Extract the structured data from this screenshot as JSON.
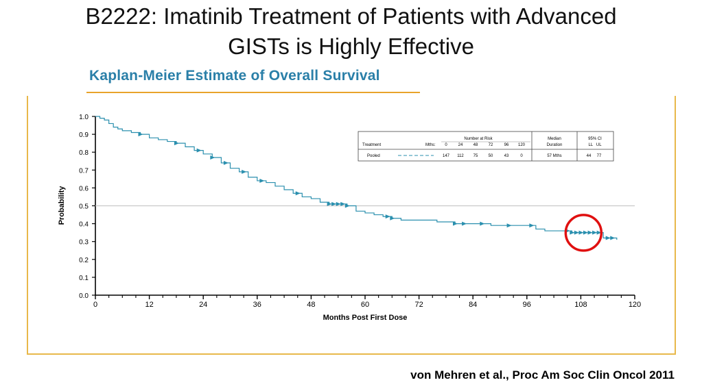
{
  "slide": {
    "title_line1": "B2222: Imatinib Treatment of Patients with Advanced",
    "title_line2": "GISTs is Highly Effective",
    "citation": "von Mehren et al., Proc Am Soc Clin Oncol 2011"
  },
  "colors": {
    "curve": "#2a8fae",
    "heading": "#2a7fa8",
    "accent_line": "#e8a32a",
    "frame": "#e8b84a",
    "highlight_circle": "#e01010",
    "median_line": "#c8c8c8"
  },
  "chart_data": {
    "type": "line",
    "title": "Kaplan-Meier Estimate of Overall Survival",
    "xlabel": "Months Post First Dose",
    "ylabel": "Probability",
    "xlim": [
      0,
      120
    ],
    "ylim": [
      0,
      1.0
    ],
    "x_ticks": [
      "0",
      "12",
      "24",
      "36",
      "48",
      "60",
      "72",
      "84",
      "96",
      "108",
      "120"
    ],
    "y_ticks": [
      "0.0",
      "0.1",
      "0.2",
      "0.3",
      "0.4",
      "0.5",
      "0.6",
      "0.7",
      "0.8",
      "0.9",
      "1.0"
    ],
    "reference_line_y": 0.5,
    "grid": false,
    "series": [
      {
        "name": "Pooled",
        "x": [
          0,
          1,
          2,
          3,
          4,
          5,
          6,
          8,
          10,
          12,
          14,
          16,
          18,
          20,
          22,
          24,
          26,
          28,
          30,
          32,
          34,
          36,
          38,
          40,
          42,
          44,
          46,
          48,
          50,
          52,
          54,
          56,
          58,
          60,
          62,
          64,
          66,
          68,
          70,
          72,
          76,
          80,
          84,
          88,
          92,
          96,
          98,
          100,
          102,
          104,
          106,
          108,
          110,
          112,
          113,
          114,
          116
        ],
        "y": [
          1.0,
          0.99,
          0.98,
          0.96,
          0.94,
          0.93,
          0.92,
          0.91,
          0.9,
          0.88,
          0.87,
          0.86,
          0.85,
          0.83,
          0.81,
          0.79,
          0.77,
          0.74,
          0.71,
          0.69,
          0.66,
          0.64,
          0.63,
          0.61,
          0.59,
          0.57,
          0.55,
          0.54,
          0.52,
          0.51,
          0.51,
          0.5,
          0.47,
          0.46,
          0.45,
          0.44,
          0.43,
          0.42,
          0.42,
          0.42,
          0.41,
          0.4,
          0.4,
          0.39,
          0.39,
          0.39,
          0.37,
          0.36,
          0.36,
          0.36,
          0.35,
          0.35,
          0.35,
          0.35,
          0.32,
          0.32,
          0.31
        ]
      }
    ],
    "censor_marks_x": [
      10,
      18,
      23,
      26,
      29,
      33,
      37,
      45,
      52,
      53,
      54,
      55,
      56,
      65,
      66,
      80,
      82,
      86,
      92,
      97,
      105,
      106,
      107,
      108,
      109,
      110,
      111,
      112,
      114,
      115
    ],
    "risk_table": {
      "header_number_at_risk": "Number at Risk",
      "header_treatment": "Treatment",
      "header_mths": "Mths:",
      "months": [
        "0",
        "24",
        "48",
        "72",
        "96",
        "120"
      ],
      "header_median": "Median",
      "header_duration": "Duration",
      "header_ci": "95% CI",
      "header_ll_ul": "LL   UL",
      "row_name": "Pooled",
      "at_risk": [
        "147",
        "112",
        "75",
        "50",
        "43",
        "0"
      ],
      "median": "57 Mths",
      "ci_ll": "44",
      "ci_ul": "77"
    },
    "annotation": {
      "type": "circle",
      "x_center": 108.6,
      "y_center": 0.349,
      "note": "highlighted curve region"
    }
  }
}
